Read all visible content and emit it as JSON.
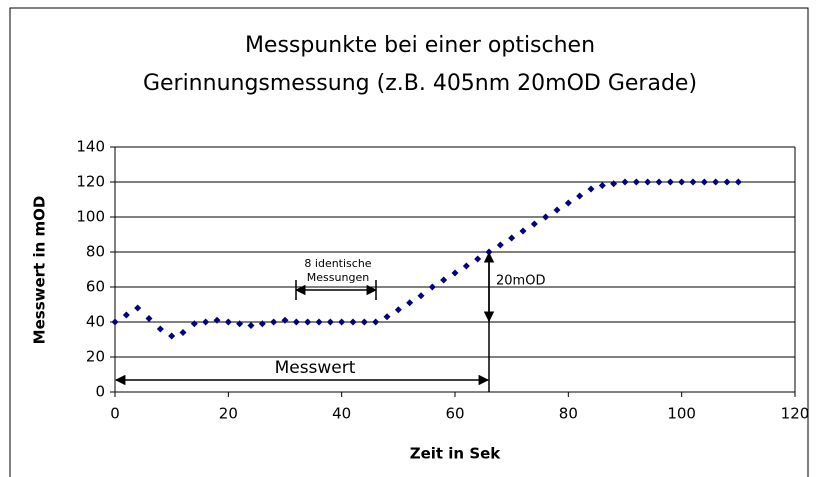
{
  "chart_data": {
    "type": "scatter",
    "title_lines": [
      "Messpunkte bei einer optischen",
      "Gerinnungsmessung (z.B. 405nm 20mOD Gerade)"
    ],
    "x_label": "Zeit in Sek",
    "y_label": "Messwert in mOD",
    "annotations": [
      "8 identische",
      "Messungen",
      "20mOD",
      "Messwert"
    ],
    "color": "#000080",
    "grid": true,
    "xlim": [
      0,
      120
    ],
    "xticks": [
      0,
      20,
      40,
      60,
      80,
      100,
      120
    ],
    "ylim": [
      0,
      140
    ],
    "yticks": [
      0,
      20,
      40,
      60,
      80,
      100,
      120,
      140
    ],
    "x": [
      0,
      2,
      4,
      6,
      8,
      10,
      12,
      14,
      16,
      18,
      20,
      22,
      24,
      26,
      28,
      30,
      32,
      34,
      36,
      38,
      40,
      42,
      44,
      46,
      48,
      50,
      52,
      54,
      56,
      58,
      60,
      62,
      64,
      66,
      68,
      70,
      72,
      74,
      76,
      78,
      80,
      82,
      84,
      86,
      88,
      90,
      92,
      94,
      96,
      98,
      100,
      102,
      104,
      106,
      108,
      110
    ],
    "values": [
      40,
      44,
      48,
      42,
      36,
      32,
      34,
      39,
      40,
      41,
      40,
      39,
      38,
      39,
      40,
      41,
      40,
      40,
      40,
      40,
      40,
      40,
      40,
      40,
      43,
      47,
      51,
      55,
      60,
      64,
      68,
      72,
      76,
      80,
      84,
      88,
      92,
      96,
      100,
      104,
      108,
      112,
      116,
      118,
      119,
      120,
      120,
      120,
      120,
      120,
      120,
      120,
      120,
      120,
      120,
      120
    ]
  }
}
